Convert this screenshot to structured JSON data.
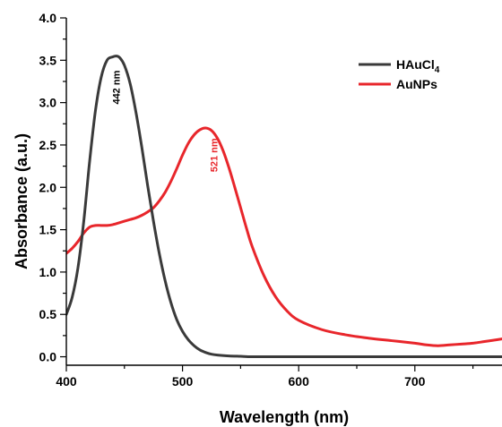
{
  "chart_data": {
    "type": "line",
    "title": "",
    "xlabel": "Wavelength (nm)",
    "ylabel": "Absorbance (a.u.)",
    "xlim": [
      400,
      775
    ],
    "ylim": [
      -0.1,
      4.0
    ],
    "x_ticks": [
      400,
      500,
      600,
      700
    ],
    "x_tick_labels": [
      "400",
      "500",
      "600",
      "700"
    ],
    "y_ticks": [
      0.0,
      0.5,
      1.0,
      1.5,
      2.0,
      2.5,
      3.0,
      3.5,
      4.0
    ],
    "y_tick_labels": [
      "0.0",
      "0.5",
      "1.0",
      "1.5",
      "2.0",
      "2.5",
      "3.0",
      "3.5",
      "4.0"
    ],
    "grid": false,
    "legend_position": "top-right",
    "series": [
      {
        "name": "HAuCl",
        "name_subscript": "4",
        "color": "#3a3a3a",
        "x": [
          400,
          405,
          410,
          415,
          420,
          425,
          430,
          435,
          440,
          443,
          446,
          450,
          455,
          460,
          465,
          470,
          475,
          480,
          485,
          490,
          495,
          500,
          505,
          510,
          515,
          520,
          525,
          530,
          540,
          550,
          560,
          580,
          600,
          650,
          700,
          750,
          775
        ],
        "y": [
          0.5,
          0.7,
          1.05,
          1.6,
          2.3,
          2.9,
          3.3,
          3.5,
          3.54,
          3.55,
          3.53,
          3.44,
          3.22,
          2.88,
          2.47,
          2.02,
          1.6,
          1.22,
          0.9,
          0.64,
          0.44,
          0.3,
          0.2,
          0.13,
          0.08,
          0.05,
          0.03,
          0.02,
          0.01,
          0.005,
          0.0,
          0.0,
          0.0,
          0.0,
          0.0,
          0.0,
          0.0
        ]
      },
      {
        "name": "AuNPs",
        "color": "#e8262b",
        "x": [
          400,
          405,
          410,
          415,
          420,
          425,
          430,
          435,
          440,
          445,
          450,
          455,
          460,
          465,
          470,
          475,
          480,
          485,
          490,
          495,
          500,
          505,
          510,
          515,
          520,
          525,
          530,
          535,
          540,
          545,
          550,
          555,
          560,
          570,
          580,
          590,
          600,
          620,
          640,
          660,
          680,
          700,
          710,
          720,
          730,
          740,
          750,
          760,
          770,
          775
        ],
        "y": [
          1.22,
          1.28,
          1.36,
          1.46,
          1.53,
          1.55,
          1.55,
          1.55,
          1.56,
          1.58,
          1.6,
          1.62,
          1.64,
          1.67,
          1.71,
          1.76,
          1.84,
          1.94,
          2.07,
          2.22,
          2.38,
          2.52,
          2.62,
          2.68,
          2.7,
          2.67,
          2.58,
          2.43,
          2.23,
          2.0,
          1.76,
          1.52,
          1.3,
          0.96,
          0.71,
          0.54,
          0.43,
          0.32,
          0.26,
          0.22,
          0.19,
          0.16,
          0.14,
          0.13,
          0.14,
          0.15,
          0.16,
          0.18,
          0.2,
          0.21
        ]
      }
    ],
    "annotations": [
      {
        "text": "442 nm",
        "x": 443,
        "y": 3.18,
        "series": 0
      },
      {
        "text": "521 nm",
        "x": 527,
        "y": 2.38,
        "series": 1
      }
    ]
  }
}
